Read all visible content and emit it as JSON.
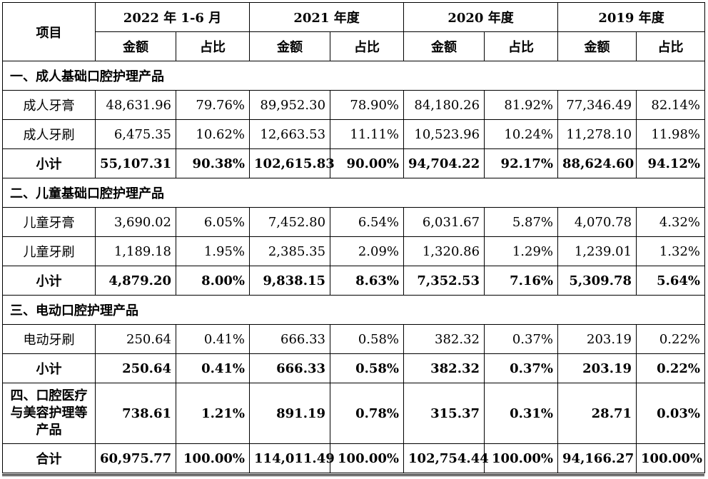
{
  "header": {
    "item_label": "项目",
    "periods": [
      "2022 年 1-6 月",
      "2021 年度",
      "2020 年度",
      "2019 年度"
    ],
    "amount_label": "金额",
    "ratio_label": "占比"
  },
  "sections": [
    {
      "title": "一、成人基础口腔护理产品",
      "rows": [
        {
          "label": "成人牙膏",
          "values": [
            "48,631.96",
            "79.76%",
            "89,952.30",
            "78.90%",
            "84,180.26",
            "81.92%",
            "77,346.49",
            "82.14%"
          ]
        },
        {
          "label": "成人牙刷",
          "values": [
            "6,475.35",
            "10.62%",
            "12,663.53",
            "11.11%",
            "10,523.96",
            "10.24%",
            "11,278.10",
            "11.98%"
          ]
        }
      ],
      "subtotal": {
        "label": "小计",
        "values": [
          "55,107.31",
          "90.38%",
          "102,615.83",
          "90.00%",
          "94,704.22",
          "92.17%",
          "88,624.60",
          "94.12%"
        ]
      }
    },
    {
      "title": "二、儿童基础口腔护理产品",
      "rows": [
        {
          "label": "儿童牙膏",
          "values": [
            "3,690.02",
            "6.05%",
            "7,452.80",
            "6.54%",
            "6,031.67",
            "5.87%",
            "4,070.78",
            "4.32%"
          ]
        },
        {
          "label": "儿童牙刷",
          "values": [
            "1,189.18",
            "1.95%",
            "2,385.35",
            "2.09%",
            "1,320.86",
            "1.29%",
            "1,239.01",
            "1.32%"
          ]
        }
      ],
      "subtotal": {
        "label": "小计",
        "values": [
          "4,879.20",
          "8.00%",
          "9,838.15",
          "8.63%",
          "7,352.53",
          "7.16%",
          "5,309.78",
          "5.64%"
        ]
      }
    },
    {
      "title": "三、电动口腔护理产品",
      "rows": [
        {
          "label": "电动牙刷",
          "values": [
            "250.64",
            "0.41%",
            "666.33",
            "0.58%",
            "382.32",
            "0.37%",
            "203.19",
            "0.22%"
          ]
        }
      ],
      "subtotal": {
        "label": "小计",
        "values": [
          "250.64",
          "0.41%",
          "666.33",
          "0.58%",
          "382.32",
          "0.37%",
          "203.19",
          "0.22%"
        ]
      }
    }
  ],
  "section4": {
    "label": "四、口腔医疗与美容护理等产品",
    "values": [
      "738.61",
      "1.21%",
      "891.19",
      "0.78%",
      "315.37",
      "0.31%",
      "28.71",
      "0.03%"
    ]
  },
  "total": {
    "label": "合计",
    "values": [
      "60,975.77",
      "100.00%",
      "114,011.49",
      "100.00%",
      "102,754.44",
      "100.00%",
      "94,166.27",
      "100.00%"
    ]
  }
}
